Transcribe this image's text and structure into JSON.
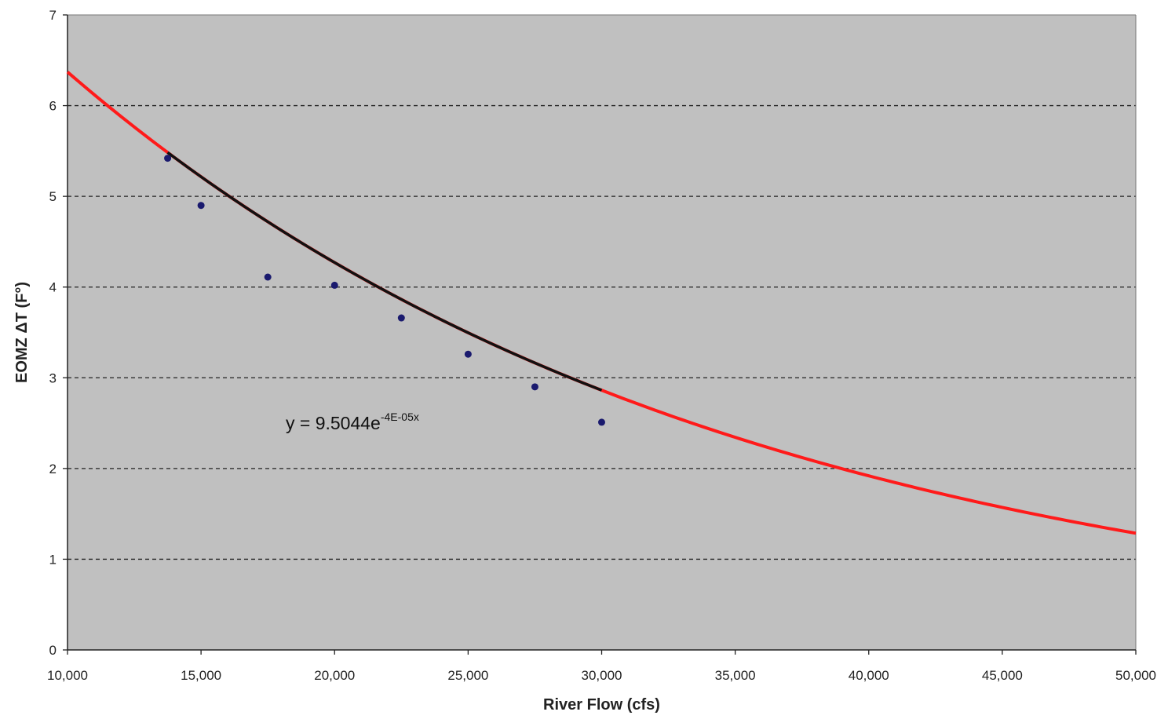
{
  "chart_data": {
    "type": "scatter",
    "xlabel": "River Flow (cfs)",
    "ylabel": "EOMZ  ΔT (F°)",
    "xlim": [
      10000,
      50000
    ],
    "ylim": [
      0,
      7
    ],
    "x_ticks": [
      "10,000",
      "15,000",
      "20,000",
      "25,000",
      "30,000",
      "35,000",
      "40,000",
      "45,000",
      "50,000"
    ],
    "y_ticks": [
      "0",
      "1",
      "2",
      "3",
      "4",
      "5",
      "6",
      "7"
    ],
    "grid": "horizontal dashed",
    "background": "#c0c0c0",
    "points": {
      "color": "#1a1a6e",
      "x": [
        13750,
        15000,
        17500,
        20000,
        22500,
        25000,
        27500,
        30000
      ],
      "y": [
        5.42,
        4.9,
        4.11,
        4.02,
        3.66,
        3.26,
        2.9,
        2.51
      ]
    },
    "trendline": {
      "color": "#111111",
      "equation_base": "y = 9.5044e",
      "equation_exp": "-4E-05x",
      "a": 9.5044,
      "b": -4e-05,
      "x_range": [
        13750,
        30000
      ]
    },
    "extended_fit": {
      "color": "#ff1a1a",
      "a": 9.5044,
      "b": -4e-05,
      "x_range": [
        10000,
        50000
      ]
    }
  }
}
